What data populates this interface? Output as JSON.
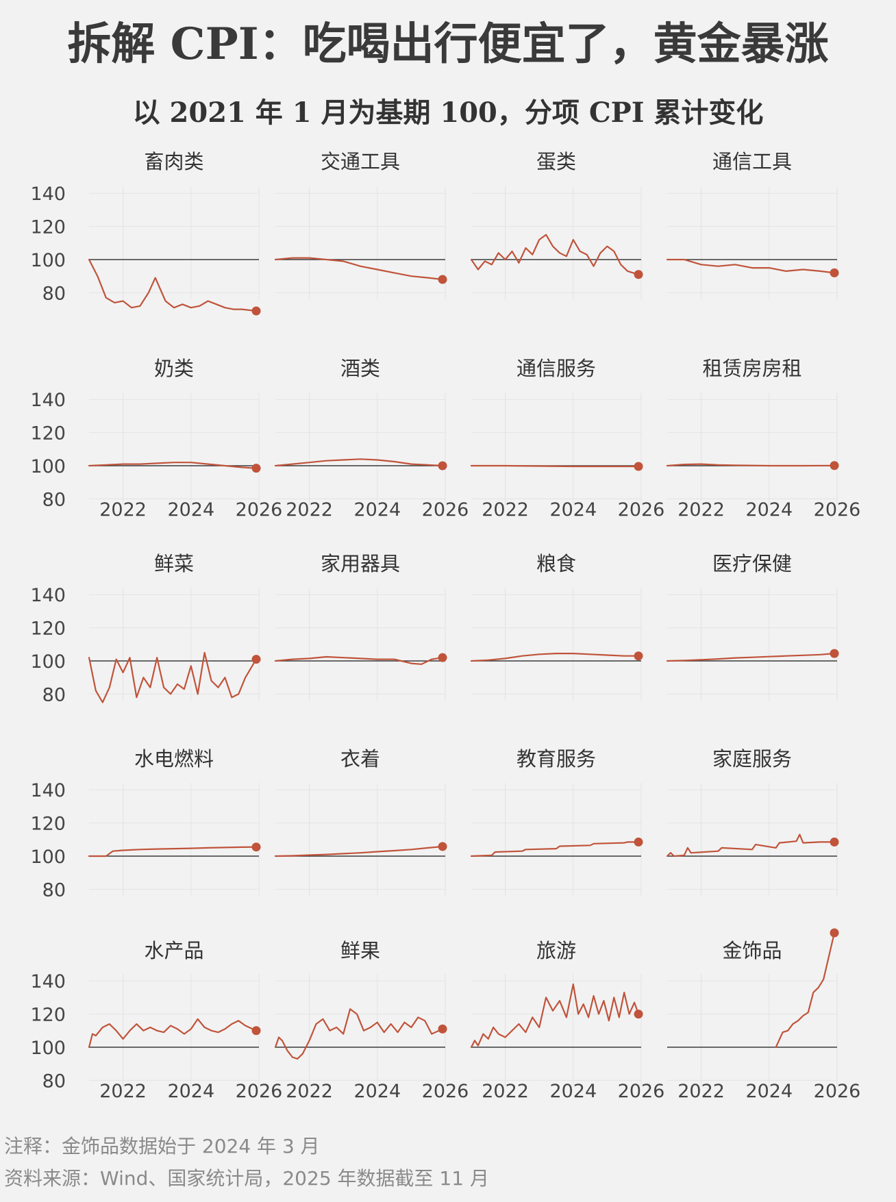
{
  "title": "拆解 CPI：吃喝出行便宜了，黄金暴涨",
  "subtitle": "以 2021 年 1 月为基期 100，分项 CPI 累计变化",
  "note": "注释：金饰品数据始于 2024 年 3 月",
  "source": "资料来源：Wind、国家统计局，2025 年数据截至 11 月",
  "colors": {
    "series": "#c0533a",
    "baseline": "#3a3a3a",
    "grid": "#e3e3e3"
  },
  "chart_data": {
    "type": "line",
    "layout": "small-multiples 5x4",
    "x_ticks": [
      "2022",
      "2024",
      "2026"
    ],
    "y_ticks": [
      "80",
      "100",
      "120",
      "140"
    ],
    "ylim": [
      80,
      140
    ],
    "baseline": 100,
    "panels": [
      {
        "title": "畜肉类",
        "x": [
          2021.0,
          2021.25,
          2021.5,
          2021.75,
          2022.0,
          2022.25,
          2022.5,
          2022.75,
          2022.95,
          2023.25,
          2023.5,
          2023.75,
          2024.0,
          2024.25,
          2024.5,
          2024.75,
          2025.0,
          2025.25,
          2025.5,
          2025.92
        ],
        "y": [
          100,
          90,
          77,
          74,
          75,
          71,
          72,
          80,
          89,
          75,
          71,
          73,
          71,
          72,
          75,
          73,
          71,
          70,
          70,
          69
        ]
      },
      {
        "title": "交通工具",
        "x": [
          2021.0,
          2021.5,
          2022.0,
          2022.5,
          2023.0,
          2023.5,
          2024.0,
          2024.5,
          2025.0,
          2025.5,
          2025.92
        ],
        "y": [
          100,
          101,
          101,
          100,
          99,
          96,
          94,
          92,
          90,
          89,
          88
        ]
      },
      {
        "title": "蛋类",
        "x": [
          2021.0,
          2021.2,
          2021.4,
          2021.6,
          2021.8,
          2022.0,
          2022.2,
          2022.4,
          2022.6,
          2022.8,
          2023.0,
          2023.2,
          2023.4,
          2023.6,
          2023.8,
          2024.0,
          2024.2,
          2024.4,
          2024.6,
          2024.8,
          2025.0,
          2025.2,
          2025.4,
          2025.6,
          2025.92
        ],
        "y": [
          100,
          94,
          99,
          97,
          104,
          100,
          105,
          98,
          107,
          103,
          112,
          115,
          108,
          104,
          102,
          112,
          105,
          103,
          96,
          104,
          108,
          105,
          97,
          93,
          91
        ]
      },
      {
        "title": "通信工具",
        "x": [
          2021.0,
          2021.5,
          2022.0,
          2022.5,
          2023.0,
          2023.5,
          2024.0,
          2024.5,
          2025.0,
          2025.5,
          2025.92
        ],
        "y": [
          100,
          100,
          97,
          96,
          97,
          95,
          95,
          93,
          94,
          93,
          92
        ]
      },
      {
        "title": "奶类",
        "x": [
          2021.0,
          2021.5,
          2022.0,
          2022.5,
          2023.0,
          2023.5,
          2024.0,
          2024.5,
          2025.0,
          2025.5,
          2025.92
        ],
        "y": [
          100,
          100.5,
          101,
          101,
          101.5,
          102,
          102,
          101,
          100,
          99,
          98.5
        ]
      },
      {
        "title": "酒类",
        "x": [
          2021.0,
          2021.5,
          2022.0,
          2022.5,
          2023.0,
          2023.5,
          2024.0,
          2024.5,
          2025.0,
          2025.5,
          2025.92
        ],
        "y": [
          100,
          101,
          102,
          103,
          103.5,
          104,
          103.5,
          102.5,
          101,
          100.5,
          100
        ]
      },
      {
        "title": "通信服务",
        "x": [
          2021.0,
          2022.0,
          2023.0,
          2024.0,
          2025.0,
          2025.92
        ],
        "y": [
          100,
          100,
          99.8,
          99.6,
          99.6,
          99.6
        ]
      },
      {
        "title": "租赁房房租",
        "x": [
          2021.0,
          2021.5,
          2022.0,
          2022.5,
          2023.0,
          2024.0,
          2025.0,
          2025.92
        ],
        "y": [
          100,
          100.8,
          101,
          100.5,
          100.3,
          100,
          100,
          100.1
        ]
      },
      {
        "title": "鲜菜",
        "x": [
          2021.0,
          2021.2,
          2021.4,
          2021.6,
          2021.8,
          2022.0,
          2022.2,
          2022.4,
          2022.6,
          2022.8,
          2023.0,
          2023.2,
          2023.4,
          2023.6,
          2023.8,
          2024.0,
          2024.2,
          2024.4,
          2024.6,
          2024.8,
          2025.0,
          2025.2,
          2025.4,
          2025.6,
          2025.92
        ],
        "y": [
          102,
          82,
          75,
          84,
          101,
          93,
          102,
          78,
          90,
          84,
          102,
          84,
          80,
          86,
          83,
          97,
          80,
          105,
          88,
          84,
          90,
          78,
          80,
          90,
          101
        ]
      },
      {
        "title": "家用器具",
        "x": [
          2021.0,
          2021.5,
          2022.0,
          2022.5,
          2023.0,
          2023.5,
          2024.0,
          2024.5,
          2025.0,
          2025.3,
          2025.6,
          2025.92
        ],
        "y": [
          100,
          101,
          101.5,
          102.5,
          102,
          101.5,
          101,
          101,
          98.5,
          98,
          101,
          102
        ]
      },
      {
        "title": "粮食",
        "x": [
          2021.0,
          2021.5,
          2022.0,
          2022.5,
          2023.0,
          2023.5,
          2024.0,
          2024.5,
          2025.0,
          2025.5,
          2025.92
        ],
        "y": [
          100,
          100.5,
          101.5,
          103,
          104,
          104.5,
          104.5,
          104,
          103.5,
          103,
          103
        ]
      },
      {
        "title": "医疗保健",
        "x": [
          2021.0,
          2021.5,
          2022.0,
          2022.5,
          2023.0,
          2023.5,
          2024.0,
          2024.5,
          2025.0,
          2025.5,
          2025.92
        ],
        "y": [
          100,
          100.3,
          100.7,
          101.2,
          101.8,
          102.2,
          102.6,
          103,
          103.4,
          103.8,
          104.5
        ]
      },
      {
        "title": "水电燃料",
        "x": [
          2021.0,
          2021.5,
          2021.7,
          2022.0,
          2022.5,
          2023.0,
          2023.5,
          2024.0,
          2024.5,
          2025.0,
          2025.5,
          2025.92
        ],
        "y": [
          100,
          100,
          103,
          103.5,
          104,
          104.3,
          104.5,
          104.7,
          105,
          105.2,
          105.4,
          105.5
        ]
      },
      {
        "title": "衣着",
        "x": [
          2021.0,
          2021.5,
          2022.0,
          2022.5,
          2023.0,
          2023.5,
          2024.0,
          2024.5,
          2025.0,
          2025.5,
          2025.92
        ],
        "y": [
          100,
          100.2,
          100.6,
          101,
          101.5,
          102,
          102.7,
          103.3,
          104,
          105,
          105.8
        ]
      },
      {
        "title": "教育服务",
        "x": [
          2021.0,
          2021.6,
          2021.7,
          2022.5,
          2022.6,
          2023.5,
          2023.6,
          2024.5,
          2024.6,
          2025.5,
          2025.6,
          2025.92
        ],
        "y": [
          100,
          100.5,
          102.5,
          103,
          104,
          104.5,
          106,
          106.5,
          107.5,
          108,
          108.5,
          108.5
        ]
      },
      {
        "title": "家庭服务",
        "x": [
          2021.0,
          2021.1,
          2021.2,
          2021.5,
          2021.6,
          2021.7,
          2022.5,
          2022.6,
          2023.5,
          2023.6,
          2024.2,
          2024.3,
          2024.8,
          2024.9,
          2025.0,
          2025.5,
          2025.92
        ],
        "y": [
          100,
          102,
          100,
          100.5,
          105,
          102,
          103,
          105,
          104,
          107,
          105,
          108,
          109,
          113,
          108,
          108.5,
          108.5
        ]
      },
      {
        "title": "水产品",
        "x": [
          2021.0,
          2021.1,
          2021.2,
          2021.4,
          2021.6,
          2021.8,
          2022.0,
          2022.2,
          2022.4,
          2022.6,
          2022.8,
          2023.0,
          2023.2,
          2023.4,
          2023.6,
          2023.8,
          2024.0,
          2024.2,
          2024.4,
          2024.6,
          2024.8,
          2025.0,
          2025.2,
          2025.4,
          2025.6,
          2025.92
        ],
        "y": [
          100,
          108,
          107,
          112,
          114,
          110,
          105,
          110,
          114,
          110,
          112,
          110,
          109,
          113,
          111,
          108,
          111,
          117,
          112,
          110,
          109,
          111,
          114,
          116,
          113,
          110
        ]
      },
      {
        "title": "鲜果",
        "x": [
          2021.0,
          2021.1,
          2021.2,
          2021.35,
          2021.5,
          2021.65,
          2021.8,
          2022.0,
          2022.2,
          2022.4,
          2022.6,
          2022.8,
          2023.0,
          2023.2,
          2023.4,
          2023.6,
          2023.8,
          2024.0,
          2024.2,
          2024.4,
          2024.6,
          2024.8,
          2025.0,
          2025.2,
          2025.4,
          2025.6,
          2025.92
        ],
        "y": [
          100,
          106,
          104,
          98,
          94,
          93,
          96,
          104,
          114,
          117,
          110,
          112,
          108,
          123,
          120,
          110,
          112,
          115,
          109,
          114,
          109,
          115,
          112,
          118,
          116,
          108,
          111
        ]
      },
      {
        "title": "旅游",
        "x": [
          2021.0,
          2021.1,
          2021.2,
          2021.35,
          2021.5,
          2021.65,
          2021.8,
          2022.0,
          2022.2,
          2022.4,
          2022.6,
          2022.8,
          2023.0,
          2023.2,
          2023.4,
          2023.6,
          2023.8,
          2024.0,
          2024.15,
          2024.3,
          2024.45,
          2024.6,
          2024.75,
          2024.9,
          2025.05,
          2025.2,
          2025.35,
          2025.5,
          2025.65,
          2025.8,
          2025.92
        ],
        "y": [
          100,
          104,
          101,
          108,
          105,
          112,
          108,
          106,
          110,
          114,
          109,
          118,
          112,
          130,
          122,
          128,
          118,
          138,
          120,
          126,
          118,
          131,
          120,
          128,
          116,
          130,
          118,
          133,
          120,
          127,
          120
        ]
      },
      {
        "title": "金饰品",
        "x": [
          2024.2,
          2024.4,
          2024.55,
          2024.7,
          2024.85,
          2025.0,
          2025.15,
          2025.3,
          2025.45,
          2025.6,
          2025.92
        ],
        "y": [
          100,
          109,
          110,
          114,
          116,
          119,
          121,
          133,
          136,
          141,
          169
        ]
      }
    ]
  }
}
